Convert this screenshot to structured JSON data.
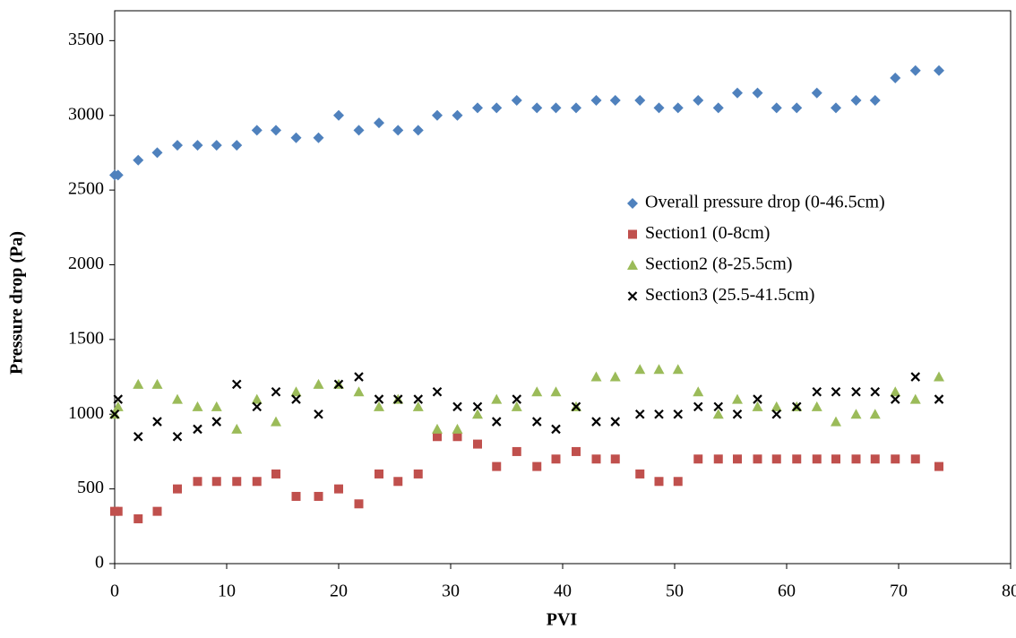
{
  "chart_data": {
    "type": "scatter",
    "x_label": "PVI",
    "y_label": "Pressure drop (Pa)",
    "x": [
      0,
      0.3,
      2.1,
      3.8,
      5.6,
      7.4,
      9.1,
      10.9,
      12.7,
      14.4,
      16.2,
      18.2,
      20,
      21.8,
      23.6,
      25.3,
      27.1,
      28.8,
      30.6,
      32.4,
      34.1,
      35.9,
      37.7,
      39.4,
      41.2,
      43,
      44.7,
      46.9,
      48.6,
      50.3,
      52.1,
      53.9,
      55.6,
      57.4,
      59.1,
      60.9,
      62.7,
      64.4,
      66.2,
      67.9,
      69.7,
      71.5,
      73.6
    ],
    "series": [
      {
        "name": "Overall pressure drop (0-46.5cm)",
        "color": "#4f81bd",
        "marker": "diamond",
        "values": [
          2600,
          2600,
          2700,
          2750,
          2800,
          2800,
          2800,
          2800,
          2900,
          2900,
          2850,
          2850,
          3000,
          2900,
          2950,
          2900,
          2900,
          3000,
          3000,
          3050,
          3050,
          3100,
          3050,
          3050,
          3050,
          3100,
          3100,
          3100,
          3050,
          3050,
          3100,
          3050,
          3150,
          3150,
          3050,
          3050,
          3150,
          3050,
          3100,
          3100,
          3250,
          3300,
          3300
        ]
      },
      {
        "name": "Section1 (0-8cm)",
        "color": "#c0504d",
        "marker": "square",
        "values": [
          350,
          350,
          300,
          350,
          500,
          550,
          550,
          550,
          550,
          600,
          450,
          450,
          500,
          400,
          600,
          550,
          600,
          850,
          850,
          800,
          650,
          750,
          650,
          700,
          750,
          700,
          700,
          600,
          550,
          550,
          700,
          700,
          700,
          700,
          700,
          700,
          700,
          700,
          700,
          700,
          700,
          700,
          650
        ]
      },
      {
        "name": "Section2 (8-25.5cm)",
        "color": "#9bbb59",
        "marker": "triangle",
        "values": [
          1000,
          1050,
          1200,
          1200,
          1100,
          1050,
          1050,
          900,
          1100,
          950,
          1150,
          1200,
          1200,
          1150,
          1050,
          1100,
          1050,
          900,
          900,
          1000,
          1100,
          1050,
          1150,
          1150,
          1050,
          1250,
          1250,
          1300,
          1300,
          1300,
          1150,
          1000,
          1100,
          1050,
          1050,
          1050,
          1050,
          950,
          1000,
          1000,
          1150,
          1100,
          1250
        ]
      },
      {
        "name": "Section3 (25.5-41.5cm)",
        "color": "#000000",
        "marker": "cross",
        "values": [
          1000,
          1100,
          850,
          950,
          850,
          900,
          950,
          1200,
          1050,
          1150,
          1100,
          1000,
          1200,
          1250,
          1100,
          1100,
          1100,
          1150,
          1050,
          1050,
          950,
          1100,
          950,
          900,
          1050,
          950,
          950,
          1000,
          1000,
          1000,
          1050,
          1050,
          1000,
          1100,
          1000,
          1050,
          1150,
          1150,
          1150,
          1150,
          1100,
          1250,
          1100
        ]
      }
    ],
    "xlim": [
      0,
      80
    ],
    "xticks": [
      0,
      10,
      20,
      30,
      40,
      50,
      60,
      70,
      80
    ],
    "ylim": [
      0,
      3700
    ],
    "yticks": [
      0,
      500,
      1000,
      1500,
      2000,
      2500,
      3000,
      3500
    ],
    "grid": false,
    "legend": "right"
  }
}
